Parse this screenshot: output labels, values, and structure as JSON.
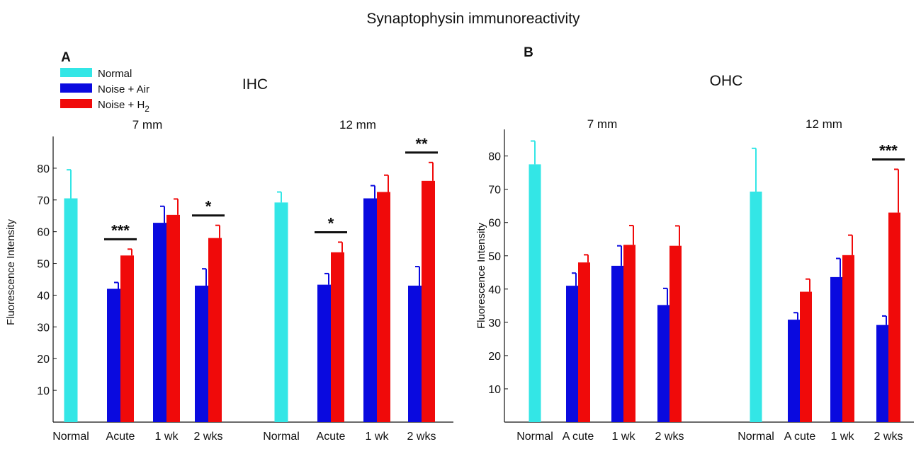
{
  "figure_title": "Synaptophysin  immunoreactivity",
  "legend": {
    "items": [
      {
        "label": "Normal",
        "color": "#33e6e6"
      },
      {
        "label": "Noise + Air",
        "color": "#0a0adf"
      },
      {
        "label": "Noise + H",
        "subscript": "2",
        "color": "#f00a0a"
      }
    ]
  },
  "colors": {
    "normal": "#33e6e6",
    "air": "#0a0adf",
    "h2": "#f00a0a"
  },
  "chart_data": [
    {
      "panel_label": "A",
      "type": "bar",
      "title": "IHC",
      "ylabel": "Fluorescence  Intensity",
      "ylim": [
        0,
        90
      ],
      "yticks": [
        10,
        20,
        30,
        40,
        50,
        60,
        70,
        80
      ],
      "groups": [
        {
          "label": "7 mm",
          "categories": [
            {
              "name": "Normal",
              "bars": [
                {
                  "series": "Normal",
                  "value": 70.5,
                  "error": 9
                }
              ]
            },
            {
              "name": "Acute",
              "bars": [
                {
                  "series": "Noise + Air",
                  "value": 42,
                  "error": 2
                },
                {
                  "series": "Noise + H2",
                  "value": 52.5,
                  "error": 2
                }
              ],
              "significance": "***"
            },
            {
              "name": "1 wk",
              "bars": [
                {
                  "series": "Noise + Air",
                  "value": 62.8,
                  "error": 5.2
                },
                {
                  "series": "Noise + H2",
                  "value": 65.3,
                  "error": 5
                }
              ]
            },
            {
              "name": "2 wks",
              "bars": [
                {
                  "series": "Noise + Air",
                  "value": 43,
                  "error": 5.3
                },
                {
                  "series": "Noise + H2",
                  "value": 58,
                  "error": 4
                }
              ],
              "significance": "*"
            }
          ]
        },
        {
          "label": "12 mm",
          "categories": [
            {
              "name": "Normal",
              "bars": [
                {
                  "series": "Normal",
                  "value": 69.2,
                  "error": 3.3
                }
              ]
            },
            {
              "name": "Acute",
              "bars": [
                {
                  "series": "Noise + Air",
                  "value": 43.3,
                  "error": 3.5
                },
                {
                  "series": "Noise + H2",
                  "value": 53.5,
                  "error": 3.2
                }
              ],
              "significance": "*"
            },
            {
              "name": "1 wk",
              "bars": [
                {
                  "series": "Noise + Air",
                  "value": 70.5,
                  "error": 4
                },
                {
                  "series": "Noise + H2",
                  "value": 72.5,
                  "error": 5.3
                }
              ]
            },
            {
              "name": "2 wks",
              "bars": [
                {
                  "series": "Noise + Air",
                  "value": 43,
                  "error": 6
                },
                {
                  "series": "Noise + H2",
                  "value": 76,
                  "error": 5.8
                }
              ],
              "significance": "**"
            }
          ]
        }
      ]
    },
    {
      "panel_label": "B",
      "type": "bar",
      "title": "OHC",
      "ylabel": "Fluorescence  Intensity",
      "ylim": [
        0,
        88
      ],
      "yticks": [
        10,
        20,
        30,
        40,
        50,
        60,
        70,
        80
      ],
      "groups": [
        {
          "label": "7 mm",
          "categories": [
            {
              "name": "Normal",
              "bars": [
                {
                  "series": "Normal",
                  "value": 77.5,
                  "error": 7
                }
              ]
            },
            {
              "name": "A cute",
              "bars": [
                {
                  "series": "Noise + Air",
                  "value": 41,
                  "error": 3.8
                },
                {
                  "series": "Noise + H2",
                  "value": 48,
                  "error": 2.3
                }
              ]
            },
            {
              "name": "1 wk",
              "bars": [
                {
                  "series": "Noise + Air",
                  "value": 47,
                  "error": 6
                },
                {
                  "series": "Noise + H2",
                  "value": 53.3,
                  "error": 5.8
                }
              ]
            },
            {
              "name": "2 wks",
              "bars": [
                {
                  "series": "Noise + Air",
                  "value": 35.2,
                  "error": 5
                },
                {
                  "series": "Noise + H2",
                  "value": 53,
                  "error": 6
                }
              ]
            }
          ]
        },
        {
          "label": "12 mm",
          "categories": [
            {
              "name": "Normal",
              "bars": [
                {
                  "series": "Normal",
                  "value": 69.3,
                  "error": 13
                }
              ]
            },
            {
              "name": "A cute",
              "bars": [
                {
                  "series": "Noise + Air",
                  "value": 30.8,
                  "error": 2.1
                },
                {
                  "series": "Noise + H2",
                  "value": 39.2,
                  "error": 3.8
                }
              ]
            },
            {
              "name": "1 wk",
              "bars": [
                {
                  "series": "Noise + Air",
                  "value": 43.6,
                  "error": 5.6
                },
                {
                  "series": "Noise + H2",
                  "value": 50.2,
                  "error": 6
                }
              ]
            },
            {
              "name": "2 wks",
              "bars": [
                {
                  "series": "Noise + Air",
                  "value": 29.2,
                  "error": 2.7
                },
                {
                  "series": "Noise + H2",
                  "value": 63,
                  "error": 13
                }
              ],
              "significance": "***"
            }
          ]
        }
      ]
    }
  ]
}
